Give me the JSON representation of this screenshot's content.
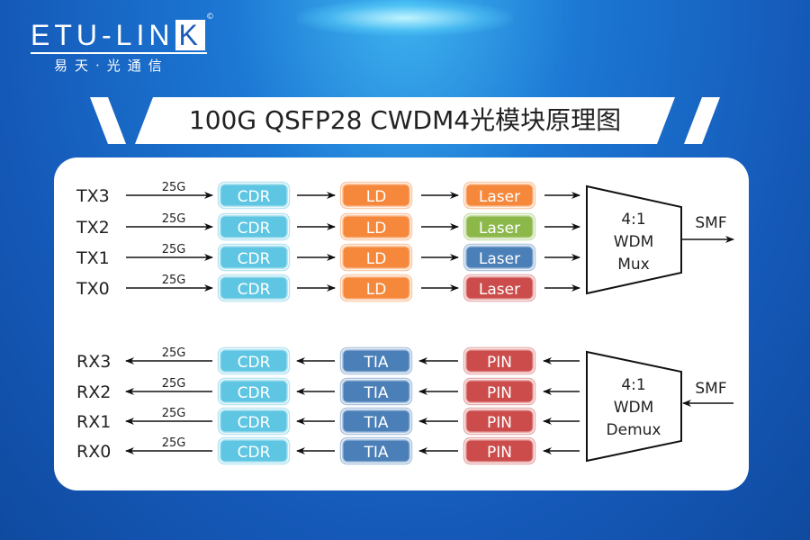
{
  "logo": {
    "main": "ETU-LIN",
    "k": "K",
    "sub": "易天·光通信",
    "copyright": "©"
  },
  "title": "100G QSFP28 CWDM4光模块原理图",
  "rate": "25G",
  "tx": {
    "lanes": [
      {
        "label": "TX3",
        "cdr": "CDR",
        "ld": "LD",
        "laser": "Laser",
        "laser_color": "#f5883a"
      },
      {
        "label": "TX2",
        "cdr": "CDR",
        "ld": "LD",
        "laser": "Laser",
        "laser_color": "#8cb84a"
      },
      {
        "label": "TX1",
        "cdr": "CDR",
        "ld": "LD",
        "laser": "Laser",
        "laser_color": "#4a7fb8"
      },
      {
        "label": "TX0",
        "cdr": "CDR",
        "ld": "LD",
        "laser": "Laser",
        "laser_color": "#cc4b4b"
      }
    ],
    "mux": {
      "line1": "4:1",
      "line2": "WDM",
      "line3": "Mux"
    },
    "fiber": "SMF"
  },
  "rx": {
    "lanes": [
      {
        "label": "RX3",
        "cdr": "CDR",
        "tia": "TIA",
        "pin": "PIN"
      },
      {
        "label": "RX2",
        "cdr": "CDR",
        "tia": "TIA",
        "pin": "PIN"
      },
      {
        "label": "RX1",
        "cdr": "CDR",
        "tia": "TIA",
        "pin": "PIN"
      },
      {
        "label": "RX0",
        "cdr": "CDR",
        "tia": "TIA",
        "pin": "PIN"
      }
    ],
    "demux": {
      "line1": "4:1",
      "line2": "WDM",
      "line3": "Demux"
    },
    "fiber": "SMF"
  },
  "colors": {
    "cdr": "#5ec6e2",
    "ld": "#f5883a",
    "tia": "#4a7fb8",
    "pin": "#cc4b4b"
  }
}
